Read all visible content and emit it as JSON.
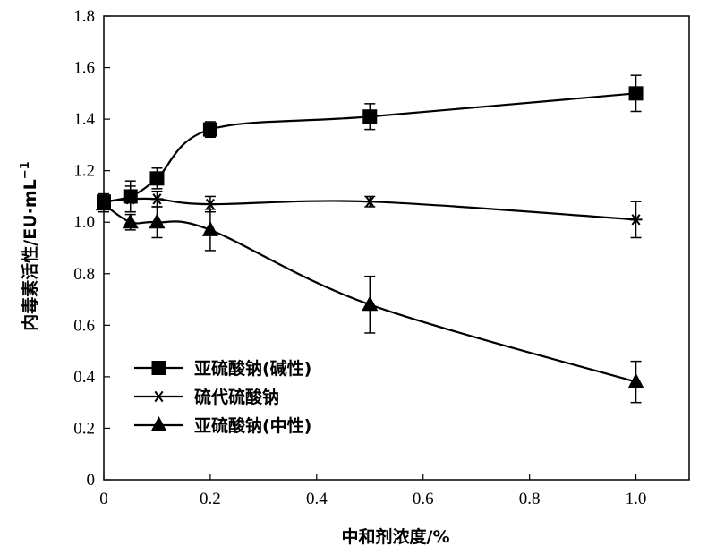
{
  "chart_data": {
    "type": "line",
    "title": "",
    "xlabel": "中和剂浓度/%",
    "ylabel": "内毒素活性/EU·mL",
    "ylabel_superscript": "−1",
    "xlim": [
      0,
      1.1
    ],
    "ylim": [
      0,
      1.8
    ],
    "x_ticks": [
      0,
      0.2,
      0.4,
      0.6,
      0.8,
      1.0
    ],
    "x_tick_labels": [
      "0",
      "0.2",
      "0.4",
      "0.6",
      "0.8",
      "1.0"
    ],
    "y_ticks": [
      0,
      0.2,
      0.4,
      0.6,
      0.8,
      1.0,
      1.2,
      1.4,
      1.6,
      1.8
    ],
    "y_tick_labels": [
      "0",
      "0.2",
      "0.4",
      "0.6",
      "0.8",
      "1.0",
      "1.2",
      "1.4",
      "1.6",
      "1.8"
    ],
    "grid": false,
    "legend_position": "bottom-left",
    "x": [
      0,
      0.05,
      0.1,
      0.2,
      0.5,
      1.0
    ],
    "series": [
      {
        "name": "亚硫酸钠(碱性)",
        "marker": "square",
        "values": [
          1.08,
          1.1,
          1.17,
          1.36,
          1.41,
          1.5
        ],
        "errors": [
          0.03,
          0.06,
          0.04,
          0.03,
          0.05,
          0.07
        ]
      },
      {
        "name": "硫代硫酸钠",
        "marker": "asterisk",
        "values": [
          1.08,
          1.09,
          1.09,
          1.07,
          1.08,
          1.01
        ],
        "errors": [
          0.02,
          0.05,
          0.03,
          0.03,
          0.02,
          0.07
        ]
      },
      {
        "name": "亚硫酸钠(中性)",
        "marker": "triangle",
        "values": [
          1.07,
          1.0,
          1.0,
          0.97,
          0.68,
          0.38
        ],
        "errors": [
          0.03,
          0.03,
          0.06,
          0.08,
          0.11,
          0.08
        ]
      }
    ]
  }
}
